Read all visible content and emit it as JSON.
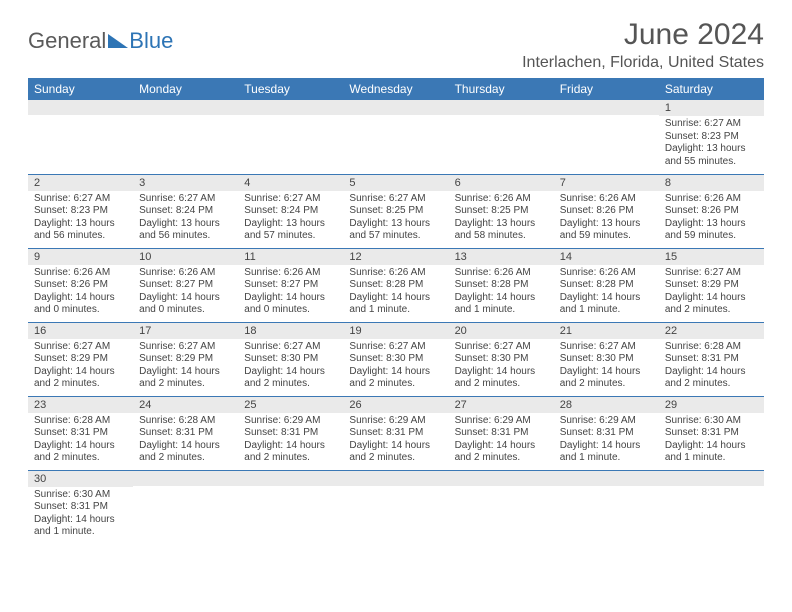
{
  "brand": {
    "part1": "General",
    "part2": "Blue"
  },
  "title": "June 2024",
  "location": "Interlachen, Florida, United States",
  "header_color": "#3b78b5",
  "daynum_bg": "#eaeaea",
  "columns": [
    "Sunday",
    "Monday",
    "Tuesday",
    "Wednesday",
    "Thursday",
    "Friday",
    "Saturday"
  ],
  "weeks": [
    [
      null,
      null,
      null,
      null,
      null,
      null,
      {
        "n": "1",
        "sr": "Sunrise: 6:27 AM",
        "ss": "Sunset: 8:23 PM",
        "dl": "Daylight: 13 hours and 55 minutes."
      }
    ],
    [
      {
        "n": "2",
        "sr": "Sunrise: 6:27 AM",
        "ss": "Sunset: 8:23 PM",
        "dl": "Daylight: 13 hours and 56 minutes."
      },
      {
        "n": "3",
        "sr": "Sunrise: 6:27 AM",
        "ss": "Sunset: 8:24 PM",
        "dl": "Daylight: 13 hours and 56 minutes."
      },
      {
        "n": "4",
        "sr": "Sunrise: 6:27 AM",
        "ss": "Sunset: 8:24 PM",
        "dl": "Daylight: 13 hours and 57 minutes."
      },
      {
        "n": "5",
        "sr": "Sunrise: 6:27 AM",
        "ss": "Sunset: 8:25 PM",
        "dl": "Daylight: 13 hours and 57 minutes."
      },
      {
        "n": "6",
        "sr": "Sunrise: 6:26 AM",
        "ss": "Sunset: 8:25 PM",
        "dl": "Daylight: 13 hours and 58 minutes."
      },
      {
        "n": "7",
        "sr": "Sunrise: 6:26 AM",
        "ss": "Sunset: 8:26 PM",
        "dl": "Daylight: 13 hours and 59 minutes."
      },
      {
        "n": "8",
        "sr": "Sunrise: 6:26 AM",
        "ss": "Sunset: 8:26 PM",
        "dl": "Daylight: 13 hours and 59 minutes."
      }
    ],
    [
      {
        "n": "9",
        "sr": "Sunrise: 6:26 AM",
        "ss": "Sunset: 8:26 PM",
        "dl": "Daylight: 14 hours and 0 minutes."
      },
      {
        "n": "10",
        "sr": "Sunrise: 6:26 AM",
        "ss": "Sunset: 8:27 PM",
        "dl": "Daylight: 14 hours and 0 minutes."
      },
      {
        "n": "11",
        "sr": "Sunrise: 6:26 AM",
        "ss": "Sunset: 8:27 PM",
        "dl": "Daylight: 14 hours and 0 minutes."
      },
      {
        "n": "12",
        "sr": "Sunrise: 6:26 AM",
        "ss": "Sunset: 8:28 PM",
        "dl": "Daylight: 14 hours and 1 minute."
      },
      {
        "n": "13",
        "sr": "Sunrise: 6:26 AM",
        "ss": "Sunset: 8:28 PM",
        "dl": "Daylight: 14 hours and 1 minute."
      },
      {
        "n": "14",
        "sr": "Sunrise: 6:26 AM",
        "ss": "Sunset: 8:28 PM",
        "dl": "Daylight: 14 hours and 1 minute."
      },
      {
        "n": "15",
        "sr": "Sunrise: 6:27 AM",
        "ss": "Sunset: 8:29 PM",
        "dl": "Daylight: 14 hours and 2 minutes."
      }
    ],
    [
      {
        "n": "16",
        "sr": "Sunrise: 6:27 AM",
        "ss": "Sunset: 8:29 PM",
        "dl": "Daylight: 14 hours and 2 minutes."
      },
      {
        "n": "17",
        "sr": "Sunrise: 6:27 AM",
        "ss": "Sunset: 8:29 PM",
        "dl": "Daylight: 14 hours and 2 minutes."
      },
      {
        "n": "18",
        "sr": "Sunrise: 6:27 AM",
        "ss": "Sunset: 8:30 PM",
        "dl": "Daylight: 14 hours and 2 minutes."
      },
      {
        "n": "19",
        "sr": "Sunrise: 6:27 AM",
        "ss": "Sunset: 8:30 PM",
        "dl": "Daylight: 14 hours and 2 minutes."
      },
      {
        "n": "20",
        "sr": "Sunrise: 6:27 AM",
        "ss": "Sunset: 8:30 PM",
        "dl": "Daylight: 14 hours and 2 minutes."
      },
      {
        "n": "21",
        "sr": "Sunrise: 6:27 AM",
        "ss": "Sunset: 8:30 PM",
        "dl": "Daylight: 14 hours and 2 minutes."
      },
      {
        "n": "22",
        "sr": "Sunrise: 6:28 AM",
        "ss": "Sunset: 8:31 PM",
        "dl": "Daylight: 14 hours and 2 minutes."
      }
    ],
    [
      {
        "n": "23",
        "sr": "Sunrise: 6:28 AM",
        "ss": "Sunset: 8:31 PM",
        "dl": "Daylight: 14 hours and 2 minutes."
      },
      {
        "n": "24",
        "sr": "Sunrise: 6:28 AM",
        "ss": "Sunset: 8:31 PM",
        "dl": "Daylight: 14 hours and 2 minutes."
      },
      {
        "n": "25",
        "sr": "Sunrise: 6:29 AM",
        "ss": "Sunset: 8:31 PM",
        "dl": "Daylight: 14 hours and 2 minutes."
      },
      {
        "n": "26",
        "sr": "Sunrise: 6:29 AM",
        "ss": "Sunset: 8:31 PM",
        "dl": "Daylight: 14 hours and 2 minutes."
      },
      {
        "n": "27",
        "sr": "Sunrise: 6:29 AM",
        "ss": "Sunset: 8:31 PM",
        "dl": "Daylight: 14 hours and 2 minutes."
      },
      {
        "n": "28",
        "sr": "Sunrise: 6:29 AM",
        "ss": "Sunset: 8:31 PM",
        "dl": "Daylight: 14 hours and 1 minute."
      },
      {
        "n": "29",
        "sr": "Sunrise: 6:30 AM",
        "ss": "Sunset: 8:31 PM",
        "dl": "Daylight: 14 hours and 1 minute."
      }
    ],
    [
      {
        "n": "30",
        "sr": "Sunrise: 6:30 AM",
        "ss": "Sunset: 8:31 PM",
        "dl": "Daylight: 14 hours and 1 minute."
      },
      null,
      null,
      null,
      null,
      null,
      null
    ]
  ]
}
